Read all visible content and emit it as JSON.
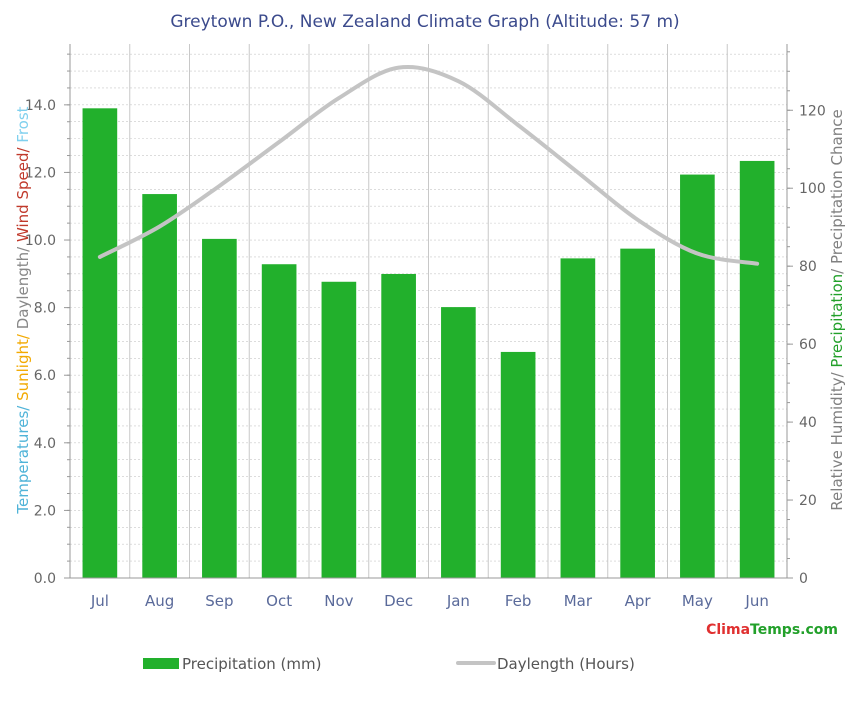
{
  "colors": {
    "bar": "#22b02c",
    "line": "#c4c4c4",
    "grid": "#c8c8c8",
    "axis": "#999999",
    "title": "#3b4a8c",
    "temperatures": "#4fb3d8",
    "sunlight": "#f2a900",
    "daylength": "#888888",
    "wind": "#c0392b",
    "frost": "#7fd0ee",
    "humidity": "#808080",
    "precipitation": "#22a02a",
    "brand_clima": "#e03030",
    "brand_temps": "#22a02a"
  },
  "chart_data": {
    "type": "bar",
    "title": "Greytown P.O., New Zealand Climate Graph (Altitude: 57 m)",
    "categories": [
      "Jul",
      "Aug",
      "Sep",
      "Oct",
      "Nov",
      "Dec",
      "Jan",
      "Feb",
      "Mar",
      "Apr",
      "May",
      "Jun"
    ],
    "series": [
      {
        "name": "Precipitation (mm)",
        "type": "bar",
        "axis": "right",
        "values": [
          120.5,
          98.5,
          87,
          80.5,
          76,
          78,
          69.5,
          58,
          82,
          84.5,
          103.5,
          107
        ]
      },
      {
        "name": "Daylength (Hours)",
        "type": "line",
        "axis": "left",
        "values": [
          9.5,
          10.4,
          11.6,
          12.9,
          14.2,
          15.1,
          14.7,
          13.4,
          12.0,
          10.6,
          9.6,
          9.3
        ]
      }
    ],
    "left_axis": {
      "ticks": [
        "0.0",
        "2.0",
        "4.0",
        "6.0",
        "8.0",
        "10.0",
        "12.0",
        "14.0"
      ],
      "ylim": [
        0,
        15.8
      ],
      "label_parts": [
        {
          "text": "Temperatures",
          "color_key": "temperatures"
        },
        {
          "text": "/ ",
          "color_key": "temperatures"
        },
        {
          "text": "Sunlight",
          "color_key": "sunlight"
        },
        {
          "text": "/ ",
          "color_key": "sunlight"
        },
        {
          "text": "Daylength",
          "color_key": "daylength"
        },
        {
          "text": "/ ",
          "color_key": "daylength"
        },
        {
          "text": "Wind Speed",
          "color_key": "wind"
        },
        {
          "text": "/ ",
          "color_key": "wind"
        },
        {
          "text": "Frost",
          "color_key": "frost"
        }
      ]
    },
    "right_axis": {
      "ticks": [
        "0",
        "20",
        "40",
        "60",
        "80",
        "100",
        "120"
      ],
      "ylim": [
        0,
        137
      ],
      "label_parts": [
        {
          "text": "Relative Humidity",
          "color_key": "humidity"
        },
        {
          "text": "/ ",
          "color_key": "humidity"
        },
        {
          "text": "Precipitation",
          "color_key": "precipitation"
        },
        {
          "text": "/ ",
          "color_key": "humidity"
        },
        {
          "text": "Precipitation Chance",
          "color_key": "humidity"
        }
      ]
    },
    "grid": true,
    "legend_position": "bottom"
  },
  "legend": {
    "precipitation": "Precipitation (mm)",
    "daylength": "Daylength (Hours)"
  },
  "brand": {
    "clima": "Clima",
    "temps": "Temps",
    "tld": ".com"
  }
}
